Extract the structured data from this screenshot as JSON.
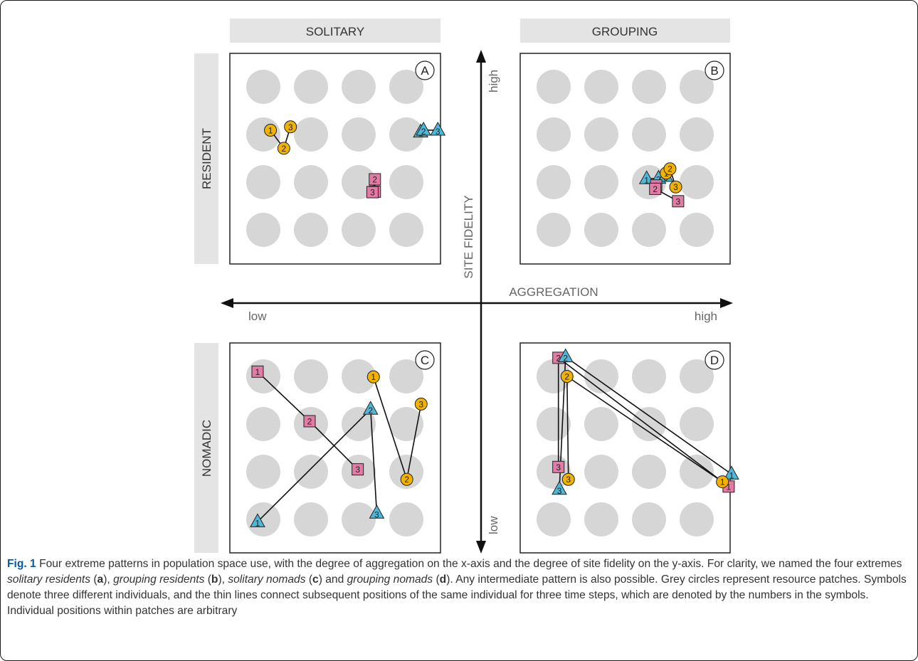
{
  "headers": {
    "solitary": "SOLITARY",
    "grouping": "GROUPING",
    "resident": "RESIDENT",
    "nomadic": "NOMADIC"
  },
  "axes": {
    "x_label": "AGGREGATION",
    "x_low": "low",
    "x_high": "high",
    "y_label": "SITE FIDELITY",
    "y_low": "low",
    "y_high": "high"
  },
  "panels": [
    {
      "id": "A",
      "letter": "A",
      "individuals": [
        {
          "shape": "circle",
          "color": "#f2b200",
          "positions": [
            {
              "step": "1",
              "col": 0.15,
              "row": 0.91
            },
            {
              "step": "2",
              "col": 0.43,
              "row": 1.29
            },
            {
              "step": "3",
              "col": 0.57,
              "row": 0.84
            }
          ]
        },
        {
          "shape": "triangle",
          "color": "#4db8d9",
          "positions": [
            {
              "step": "1",
              "col": 3.3,
              "row": 0.95
            },
            {
              "step": "2",
              "col": 3.36,
              "row": 0.91
            },
            {
              "step": "3",
              "col": 3.66,
              "row": 0.91
            }
          ]
        },
        {
          "shape": "square",
          "color": "#e47aa6",
          "positions": [
            {
              "step": "1",
              "col": 2.34,
              "row": 2.2
            },
            {
              "step": "2",
              "col": 2.34,
              "row": 1.94
            },
            {
              "step": "3",
              "col": 2.29,
              "row": 2.21
            }
          ]
        }
      ]
    },
    {
      "id": "B",
      "letter": "B",
      "individuals": [
        {
          "shape": "triangle",
          "color": "#4db8d9",
          "positions": [
            {
              "step": "1",
              "col": 1.95,
              "row": 1.93
            },
            {
              "step": "2",
              "col": 2.2,
              "row": 1.92
            },
            {
              "step": "3",
              "col": 2.35,
              "row": 1.88
            }
          ]
        },
        {
          "shape": "square",
          "color": "#e47aa6",
          "positions": [
            {
              "step": "1",
              "col": 2.15,
              "row": 2.07
            },
            {
              "step": "2",
              "col": 2.13,
              "row": 2.14
            },
            {
              "step": "3",
              "col": 2.61,
              "row": 2.4
            }
          ]
        },
        {
          "shape": "circle",
          "color": "#f2b200",
          "positions": [
            {
              "step": "1",
              "col": 2.36,
              "row": 1.81
            },
            {
              "step": "2",
              "col": 2.44,
              "row": 1.72
            },
            {
              "step": "3",
              "col": 2.56,
              "row": 2.1
            }
          ]
        }
      ]
    },
    {
      "id": "C",
      "letter": "C",
      "individuals": [
        {
          "shape": "square",
          "color": "#e47aa6",
          "positions": [
            {
              "step": "1",
              "col": -0.12,
              "row": -0.1
            },
            {
              "step": "2",
              "col": 0.97,
              "row": 0.94
            },
            {
              "step": "3",
              "col": 1.98,
              "row": 1.95
            }
          ]
        },
        {
          "shape": "triangle",
          "color": "#4db8d9",
          "positions": [
            {
              "step": "1",
              "col": -0.12,
              "row": 3.05
            },
            {
              "step": "2",
              "col": 2.25,
              "row": 0.69
            },
            {
              "step": "3",
              "col": 2.38,
              "row": 2.87
            }
          ]
        },
        {
          "shape": "circle",
          "color": "#f2b200",
          "positions": [
            {
              "step": "1",
              "col": 2.31,
              "row": 0.01
            },
            {
              "step": "2",
              "col": 3.01,
              "row": 2.16
            },
            {
              "step": "3",
              "col": 3.31,
              "row": 0.58
            }
          ]
        }
      ]
    },
    {
      "id": "D",
      "letter": "D",
      "individuals": [
        {
          "shape": "square",
          "color": "#e47aa6",
          "positions": [
            {
              "step": "1",
              "col": 3.67,
              "row": 2.31
            },
            {
              "step": "2",
              "col": 0.1,
              "row": -0.39
            },
            {
              "step": "3",
              "col": 0.1,
              "row": 1.9
            }
          ]
        },
        {
          "shape": "triangle",
          "color": "#4db8d9",
          "positions": [
            {
              "step": "1",
              "col": 3.73,
              "row": 2.05
            },
            {
              "step": "2",
              "col": 0.25,
              "row": -0.41
            },
            {
              "step": "3",
              "col": 0.12,
              "row": 2.37
            }
          ]
        },
        {
          "shape": "circle",
          "color": "#f2b200",
          "positions": [
            {
              "step": "1",
              "col": 3.54,
              "row": 2.21
            },
            {
              "step": "2",
              "col": 0.28,
              "row": 0.0
            },
            {
              "step": "3",
              "col": 0.31,
              "row": 2.16
            }
          ]
        }
      ]
    }
  ],
  "caption": {
    "label": "Fig. 1",
    "t1": " Four extreme patterns in population space use, with the degree of aggregation on the x-axis and the degree of site fidelity on the y-axis. For clarity, we named the four extremes ",
    "e1": "solitary residents",
    "p1a": " (",
    "l1": "a",
    "p1b": "), ",
    "e2": "grouping residents",
    "p2a": " (",
    "l2": "b",
    "p2b": "), ",
    "e3": "solitary nomads",
    "p3a": " (",
    "l3": "c",
    "p3b": ") and ",
    "e4": "grouping nomads",
    "p4a": " (",
    "l4": "d",
    "p4b": ").",
    "t2": " Any intermediate pattern is also possible. Grey circles represent resource patches. Symbols denote three different individuals, and the thin lines connect subsequent positions of the same individual for three time steps, which are denoted by the numbers in the symbols. Individual positions within patches are arbitrary"
  }
}
